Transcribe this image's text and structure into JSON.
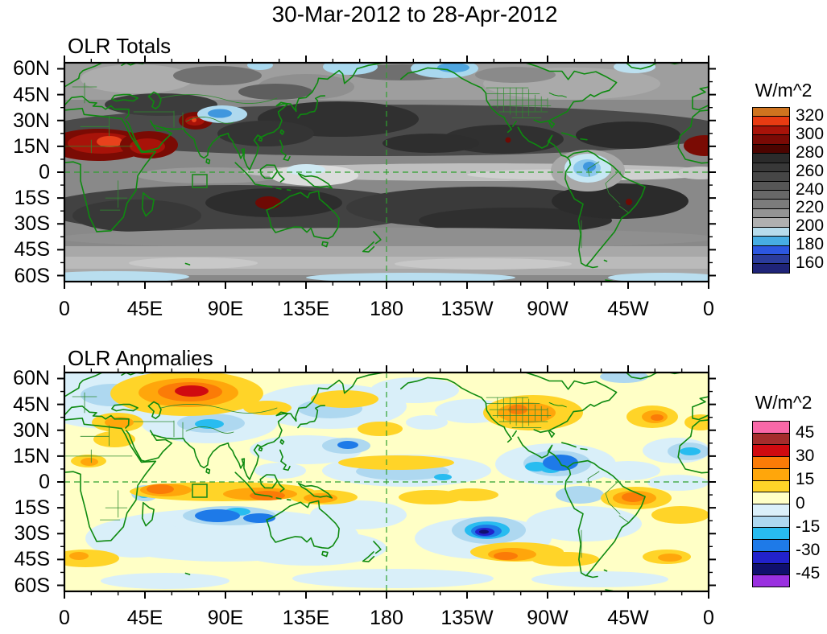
{
  "main_title": "30-Mar-2012 to 28-Apr-2012",
  "axis": {
    "lon_labels": [
      "0",
      "45E",
      "90E",
      "135E",
      "180",
      "135W",
      "90W",
      "45W",
      "0"
    ],
    "lat_labels": [
      "60N",
      "45N",
      "30N",
      "15N",
      "0",
      "15S",
      "30S",
      "45S",
      "60S"
    ]
  },
  "panels": [
    {
      "key": "totals",
      "title": "OLR Totals",
      "units_label": "W/m^2",
      "colorbar": {
        "cell_colors_top_to_bottom": [
          "#D0741F",
          "#E93B12",
          "#A81309",
          "#7A0A05",
          "#4C0400",
          "#2B2B2B",
          "#383838",
          "#464646",
          "#565656",
          "#686868",
          "#7C7C7C",
          "#949494",
          "#B0B0B0",
          "#B6DCEC",
          "#47ADE3",
          "#2C57E0",
          "#2B3C9B",
          "#1F2478"
        ],
        "tick_labels": [
          "320",
          "300",
          "280",
          "260",
          "240",
          "220",
          "200",
          "180",
          "160"
        ]
      }
    },
    {
      "key": "anomalies",
      "title": "OLR Anomalies",
      "units_label": "W/m^2",
      "colorbar": {
        "cell_colors_top_to_bottom": [
          "#F868A8",
          "#A52C2C",
          "#D00A10",
          "#FB7B07",
          "#FFA60B",
          "#FFD428",
          "#FFFFC6",
          "#DBF0FA",
          "#AED8F0",
          "#28BCF0",
          "#1E7AE8",
          "#2222CC",
          "#10106E",
          "#9A30E0"
        ],
        "tick_labels": [
          "45",
          "30",
          "15",
          "0",
          "-15",
          "-30",
          "-45"
        ]
      }
    }
  ],
  "chart_data": [
    {
      "type": "heatmap",
      "subtype": "filled-contour-world-map",
      "title": "OLR Totals",
      "period": "30-Mar-2012 to 28-Apr-2012",
      "units": "W/m^2",
      "projection": "cylindrical equidistant, Pacific-centered (180 at middle)",
      "lon_axis_ticks": [
        "0",
        "45E",
        "90E",
        "135E",
        "180",
        "135W",
        "90W",
        "45W",
        "0"
      ],
      "lat_axis_ticks": [
        "60N",
        "45N",
        "30N",
        "15N",
        "0",
        "15S",
        "30S",
        "45S",
        "60S"
      ],
      "contour_levels": [
        160,
        170,
        180,
        190,
        200,
        210,
        220,
        230,
        240,
        250,
        260,
        270,
        280,
        290,
        300,
        310,
        320
      ],
      "labeled_levels": [
        160,
        180,
        200,
        220,
        240,
        260,
        280,
        300,
        320
      ],
      "palette_high_to_low": [
        "#D0741F",
        "#E93B12",
        "#A81309",
        "#7A0A05",
        "#4C0400",
        "#2B2B2B",
        "#383838",
        "#464646",
        "#565656",
        "#686868",
        "#7C7C7C",
        "#949494",
        "#B0B0B0",
        "#B6DCEC",
        "#47ADE3",
        "#2C57E0",
        "#2B3C9B",
        "#1F2478"
      ],
      "overlays": [
        "green coastlines and country/state borders",
        "dashed green equator line",
        "dashed green 180 meridian line",
        "green index box ~70-80E, 1-9S"
      ],
      "features": [
        "Maximum OLR > 310-320 W/m^2 (orange/red) over eastern Sahara ~15-35E, 14-24N",
        "280-300 W/m^2 (dark red) over Arabia / Horn of Africa and NW India",
        "Small 280+ patch over NW Australia interior",
        "Minima < 200 W/m^2 (light blue) over Tibetan Plateau, northern South America, Bering Sea / Sea of Okhotsk, and along 55-63S",
        "Light 200-220 ITCZ band along the equator across the Pacific and Atlantic",
        "Dark 250-280 subtropical bands in both hemispheres"
      ]
    },
    {
      "type": "heatmap",
      "subtype": "filled-contour-world-map",
      "title": "OLR Anomalies",
      "period": "30-Mar-2012 to 28-Apr-2012",
      "units": "W/m^2",
      "projection": "cylindrical equidistant, Pacific-centered (180 at middle)",
      "lon_axis_ticks": [
        "0",
        "45E",
        "90E",
        "135E",
        "180",
        "135W",
        "90W",
        "45W",
        "0"
      ],
      "lat_axis_ticks": [
        "60N",
        "45N",
        "30N",
        "15N",
        "0",
        "15S",
        "30S",
        "45S",
        "60S"
      ],
      "contour_levels": [
        -45,
        -37.5,
        -30,
        -22.5,
        -15,
        -7.5,
        0,
        7.5,
        15,
        22.5,
        30,
        37.5,
        45
      ],
      "labeled_levels": [
        -45,
        -30,
        -15,
        0,
        15,
        30,
        45
      ],
      "palette_high_to_low": [
        "#F868A8",
        "#A52C2C",
        "#D00A10",
        "#FB7B07",
        "#FFA60B",
        "#FFD428",
        "#FFFFC6",
        "#DBF0FA",
        "#AED8F0",
        "#28BCF0",
        "#1E7AE8",
        "#2222CC",
        "#10106E",
        "#9A30E0"
      ],
      "overlays": [
        "green coastlines and country/state borders",
        "dashed green equator line",
        "dashed green 180 meridian line",
        "green index box ~70-80E, 1-9S"
      ],
      "features": [
        "Strong positive anomaly +30..+45 (red/orange) over Kazakhstan / southern Siberia ~55-95E, 45-57N",
        "+15..+30 band along the equatorial Indian Ocean (~50-130E, 0-8S) extending to New Guinea",
        "-15..-30 band in the south Indian Ocean (~10-20S)",
        "-30..-45 (navy) blob in the SE Pacific near 125W, 25-30S",
        "+15..+30 over NE Brazil and adjacent Atlantic",
        "+7.5..+22.5 over the central United States and N Atlantic",
        "-7.5..-22.5 over the Caribbean / Central America",
        "Background mostly within +/-7.5 (cream / pale blue)"
      ]
    }
  ]
}
